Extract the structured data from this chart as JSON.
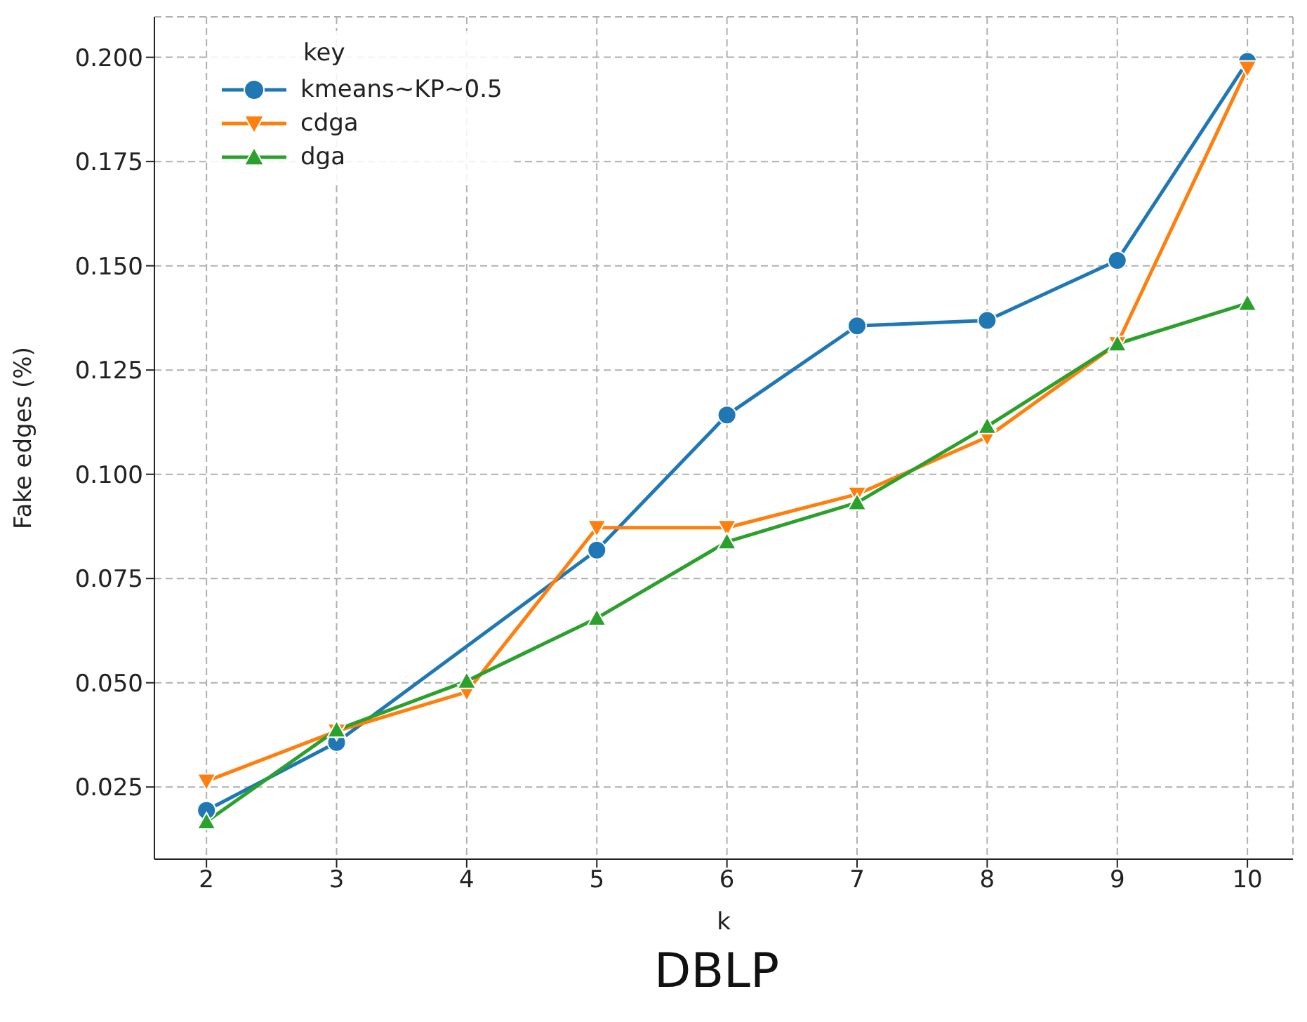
{
  "chart_data": {
    "type": "line",
    "title": "DBLP",
    "xlabel": "k",
    "ylabel": "Fake edges (%)",
    "legend_title": "key",
    "legend": "top left",
    "grid": true,
    "line_style": "solid",
    "x": [
      2,
      3,
      4,
      5,
      6,
      7,
      8,
      9,
      10
    ],
    "xlim": [
      1.6,
      10.35
    ],
    "xticks": [
      2,
      3,
      4,
      5,
      6,
      7,
      8,
      9,
      10
    ],
    "ylim": [
      0.0077,
      0.2097
    ],
    "yticks": [
      {
        "value": 0.025,
        "label": "0.025"
      },
      {
        "value": 0.05,
        "label": "0.050"
      },
      {
        "value": 0.075,
        "label": "0.075"
      },
      {
        "value": 0.1,
        "label": "0.100"
      },
      {
        "value": 0.125,
        "label": "0.125"
      },
      {
        "value": 0.15,
        "label": "0.150"
      },
      {
        "value": 0.175,
        "label": "0.175"
      },
      {
        "value": 0.2,
        "label": "0.200"
      }
    ],
    "series": [
      {
        "name": "kmeans~KP~0.5",
        "color": "#1f77b4",
        "marker": "circle",
        "values": [
          0.0194,
          0.0357,
          null,
          0.0818,
          0.1142,
          0.1356,
          0.1369,
          0.1513,
          0.199
        ]
      },
      {
        "name": "cdga",
        "color": "#ff7f0e",
        "marker": "triangle-down",
        "values": [
          0.0264,
          0.0384,
          0.0478,
          0.0872,
          0.0872,
          0.0952,
          0.1089,
          0.1313,
          0.1974
        ]
      },
      {
        "name": "dga",
        "color": "#2ca02c",
        "marker": "triangle",
        "values": [
          0.0167,
          0.0387,
          0.0504,
          0.0655,
          0.0838,
          0.0932,
          0.1115,
          0.1313,
          0.141
        ]
      }
    ]
  }
}
